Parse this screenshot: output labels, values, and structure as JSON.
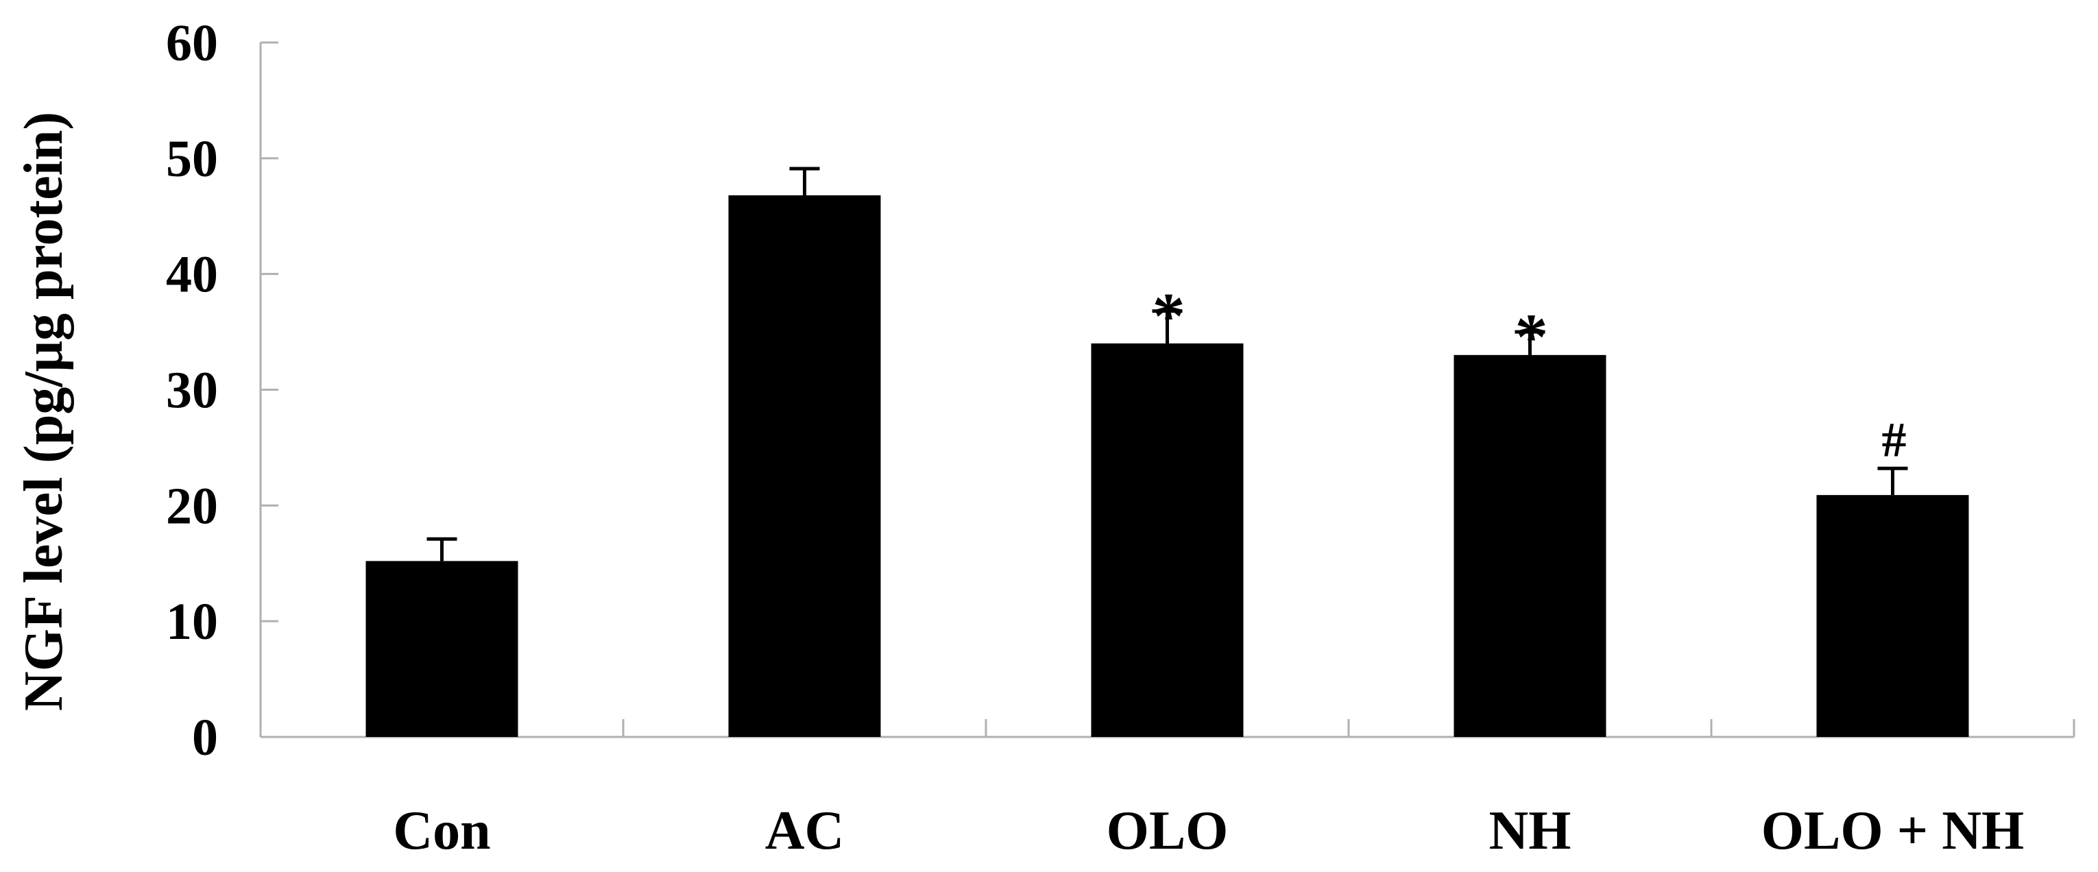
{
  "chart_data": {
    "type": "bar",
    "title": "",
    "xlabel": "",
    "ylabel": "NGF level (pg/μg protein)",
    "categories": [
      "Con",
      "AC",
      "OLO",
      "NH",
      "OLO + NH"
    ],
    "values": [
      15.2,
      46.8,
      34.0,
      33.0,
      20.9
    ],
    "errors": [
      1.9,
      2.3,
      2.8,
      2.0,
      2.3
    ],
    "annotations": [
      "",
      "",
      "*",
      "*",
      "#"
    ],
    "ylim": [
      0,
      60
    ],
    "yticks": [
      "0",
      "10",
      "20",
      "30",
      "40",
      "50",
      "60"
    ],
    "grid": false,
    "legend": "none",
    "bar_color": "#000000",
    "axis_color": "#b0b0b0"
  }
}
